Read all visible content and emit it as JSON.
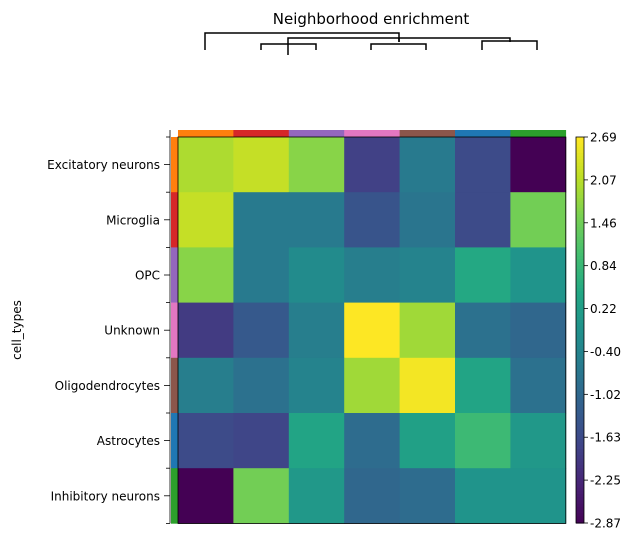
{
  "chart_data": {
    "type": "heatmap",
    "title": "Neighborhood enrichment",
    "ylabel": "cell_types",
    "rows": [
      "Excitatory neurons",
      "Microglia",
      "OPC",
      "Unknown",
      "Oligodendrocytes",
      "Astrocytes",
      "Inhibitory neurons"
    ],
    "row_colors": [
      "#ff7f0e",
      "#d62728",
      "#9467bd",
      "#e377c2",
      "#8c564b",
      "#1f77b4",
      "#2ca02c"
    ],
    "col_colors": [
      "#ff7f0e",
      "#d62728",
      "#9467bd",
      "#e377c2",
      "#8c564b",
      "#1f77b4",
      "#2ca02c"
    ],
    "values": [
      [
        2.0,
        2.2,
        1.7,
        -1.8,
        -0.6,
        -1.6,
        -2.87
      ],
      [
        2.2,
        -0.6,
        -0.6,
        -1.4,
        -0.7,
        -1.6,
        1.5
      ],
      [
        1.7,
        -0.6,
        -0.2,
        -0.5,
        -0.4,
        0.5,
        0.0
      ],
      [
        -1.9,
        -1.3,
        -0.5,
        2.69,
        1.9,
        -0.8,
        -1.0
      ],
      [
        -0.5,
        -0.8,
        -0.4,
        1.9,
        2.6,
        0.4,
        -0.8
      ],
      [
        -1.6,
        -1.7,
        0.4,
        -0.9,
        0.3,
        0.9,
        0.1
      ],
      [
        -2.87,
        1.5,
        0.1,
        -1.0,
        -0.9,
        0.0,
        0.0
      ]
    ],
    "vmin": -2.87,
    "vmax": 2.69,
    "colorbar_ticks": [
      "2.69",
      "2.07",
      "1.46",
      "0.84",
      "0.22",
      "-0.40",
      "-1.02",
      "-1.63",
      "-2.25",
      "-2.87"
    ],
    "colormap": "viridis"
  }
}
